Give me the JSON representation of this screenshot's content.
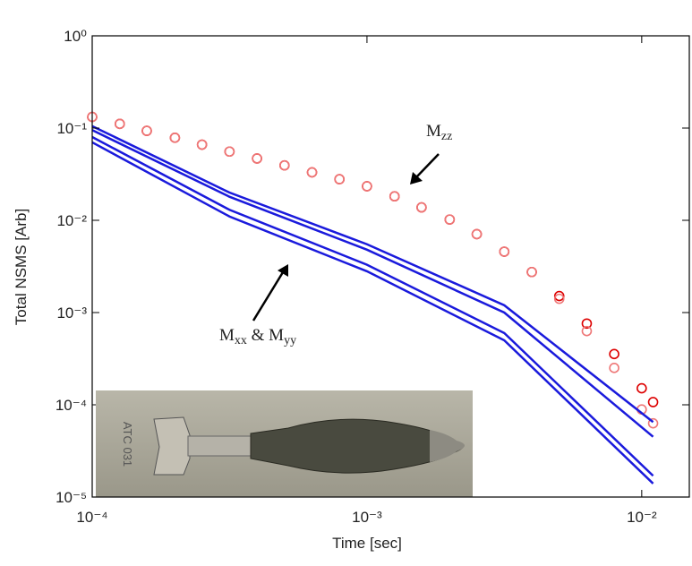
{
  "chart_data": {
    "type": "line",
    "xlabel": "Time [sec]",
    "ylabel": "Total NSMS [Arb]",
    "log_x": true,
    "log_y": true,
    "xlim": [
      0.0001,
      0.0149
    ],
    "ylim": [
      1e-05,
      1
    ],
    "xticks": [
      {
        "value": 0.0001,
        "label": "10⁻⁴"
      },
      {
        "value": 0.001,
        "label": "10⁻³"
      },
      {
        "value": 0.01,
        "label": "10⁻²"
      }
    ],
    "yticks": [
      {
        "value": 1e-05,
        "label": "10⁻⁵"
      },
      {
        "value": 0.0001,
        "label": "10⁻⁴"
      },
      {
        "value": 0.001,
        "label": "10⁻³"
      },
      {
        "value": 0.01,
        "label": "10⁻²"
      },
      {
        "value": 0.1,
        "label": "10⁻¹"
      },
      {
        "value": 1,
        "label": "10⁰"
      }
    ],
    "x": [
      0.0001,
      0.000126,
      0.000158,
      0.0002,
      0.000251,
      0.000316,
      0.000398,
      0.000501,
      0.000631,
      0.000794,
      0.001,
      0.00126,
      0.00158,
      0.002,
      0.00251,
      0.00316,
      0.00398,
      0.00501,
      0.00631,
      0.00794,
      0.01,
      0.011
    ],
    "series": [
      {
        "color": "#dd0000",
        "mode": "markers",
        "values": [
          0.132,
          0.111,
          0.0933,
          0.0785,
          0.0661,
          0.0556,
          0.0468,
          0.0394,
          0.0331,
          0.0279,
          0.0234,
          0.0182,
          0.0138,
          0.0102,
          0.00708,
          0.00457,
          0.00275,
          0.00151,
          0.00076,
          0.000355,
          0.000151,
          0.000107
        ]
      },
      {
        "color": "#ee7777",
        "mode": "markers",
        "values": [
          0.132,
          0.111,
          0.0933,
          0.0785,
          0.0661,
          0.0556,
          0.0468,
          0.0394,
          0.0331,
          0.0279,
          0.0234,
          0.0182,
          0.0138,
          0.0102,
          0.00708,
          0.00457,
          0.00275,
          0.00141,
          0.00063,
          0.000251,
          8.9e-05,
          6.3e-05
        ]
      },
      {
        "color": "#1a1adc",
        "mode": "line",
        "x": [
          0.0001,
          0.000316,
          0.001,
          0.00316,
          0.011
        ],
        "values": [
          0.105,
          0.02,
          0.0055,
          0.0012,
          6.5e-05
        ]
      },
      {
        "color": "#1a1adc",
        "mode": "line",
        "x": [
          0.0001,
          0.000316,
          0.001,
          0.00316,
          0.011
        ],
        "values": [
          0.095,
          0.018,
          0.0048,
          0.001,
          4.5e-05
        ]
      },
      {
        "color": "#1a1adc",
        "mode": "line",
        "x": [
          0.0001,
          0.000316,
          0.001,
          0.00316,
          0.011
        ],
        "values": [
          0.08,
          0.013,
          0.0033,
          0.0006,
          1.7e-05
        ]
      },
      {
        "color": "#1a1adc",
        "mode": "line",
        "x": [
          0.0001,
          0.000316,
          0.001,
          0.00316,
          0.011
        ],
        "values": [
          0.07,
          0.011,
          0.0028,
          0.0005,
          1.4e-05
        ]
      }
    ],
    "annotations": [
      {
        "runs": [
          {
            "text": "M"
          },
          {
            "text": "zz",
            "sub": true
          }
        ]
      },
      {
        "runs": [
          {
            "text": "M"
          },
          {
            "text": "xx",
            "sub": true
          },
          {
            "text": " & M"
          },
          {
            "text": "yy",
            "sub": true
          }
        ]
      }
    ],
    "photo_label": "ATC 031"
  }
}
